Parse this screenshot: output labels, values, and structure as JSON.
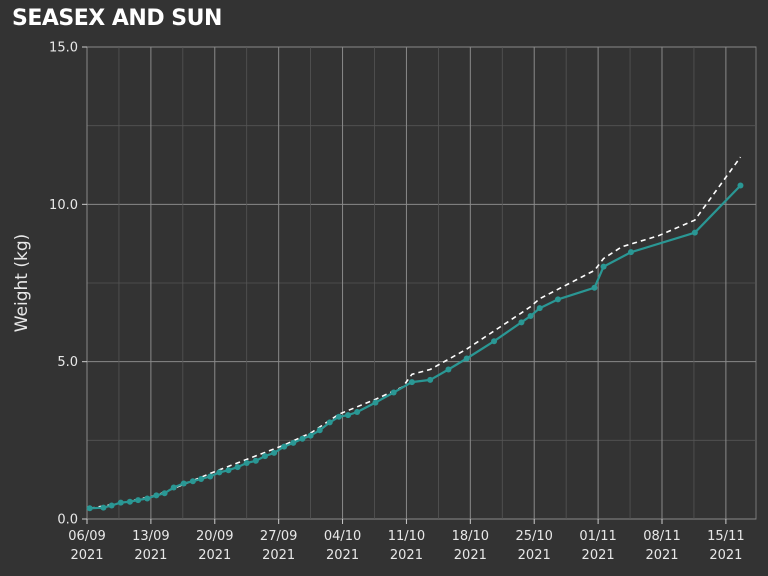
{
  "chart_data": {
    "type": "line",
    "title": "SEASEX AND SUN",
    "xlabel": "",
    "ylabel": "Weight (kg)",
    "ylim": [
      0,
      15
    ],
    "y_ticks": [
      {
        "value": 0,
        "label": "0.0"
      },
      {
        "value": 5,
        "label": "5.0"
      },
      {
        "value": 10,
        "label": "10.0"
      },
      {
        "value": 15,
        "label": "15.0"
      }
    ],
    "x_ticks": [
      {
        "value": 0,
        "line1": "06/09",
        "line2": "2021"
      },
      {
        "value": 7,
        "line1": "13/09",
        "line2": "2021"
      },
      {
        "value": 14,
        "line1": "20/09",
        "line2": "2021"
      },
      {
        "value": 21,
        "line1": "27/09",
        "line2": "2021"
      },
      {
        "value": 28,
        "line1": "04/10",
        "line2": "2021"
      },
      {
        "value": 35,
        "line1": "11/10",
        "line2": "2021"
      },
      {
        "value": 42,
        "line1": "18/10",
        "line2": "2021"
      },
      {
        "value": 49,
        "line1": "25/10",
        "line2": "2021"
      },
      {
        "value": 56,
        "line1": "01/11",
        "line2": "2021"
      },
      {
        "value": 63,
        "line1": "08/11",
        "line2": "2021"
      },
      {
        "value": 70,
        "line1": "15/11",
        "line2": "2021"
      }
    ],
    "xlim": [
      0,
      73.3
    ],
    "grid": true,
    "series": [
      {
        "name": "",
        "style": "solid",
        "color": "#2a9794",
        "markers": true,
        "points": [
          [
            0.3,
            0.34
          ],
          [
            1.8,
            0.36
          ],
          [
            2.7,
            0.43
          ],
          [
            3.7,
            0.52
          ],
          [
            4.7,
            0.55
          ],
          [
            5.6,
            0.6
          ],
          [
            6.6,
            0.65
          ],
          [
            7.6,
            0.75
          ],
          [
            8.5,
            0.82
          ],
          [
            9.5,
            1.0
          ],
          [
            10.6,
            1.13
          ],
          [
            11.6,
            1.2
          ],
          [
            12.5,
            1.27
          ],
          [
            13.5,
            1.35
          ],
          [
            14.5,
            1.48
          ],
          [
            15.5,
            1.55
          ],
          [
            16.5,
            1.65
          ],
          [
            17.5,
            1.78
          ],
          [
            18.5,
            1.85
          ],
          [
            19.5,
            2.0
          ],
          [
            20.5,
            2.1
          ],
          [
            21.6,
            2.3
          ],
          [
            22.6,
            2.42
          ],
          [
            23.6,
            2.55
          ],
          [
            24.5,
            2.65
          ],
          [
            25.5,
            2.82
          ],
          [
            26.6,
            3.07
          ],
          [
            27.6,
            3.25
          ],
          [
            28.6,
            3.3
          ],
          [
            29.6,
            3.4
          ],
          [
            31.6,
            3.7
          ],
          [
            33.6,
            4.02
          ],
          [
            35.6,
            4.35
          ],
          [
            37.6,
            4.42
          ],
          [
            39.6,
            4.75
          ],
          [
            41.6,
            5.1
          ],
          [
            44.6,
            5.65
          ],
          [
            47.6,
            6.25
          ],
          [
            48.6,
            6.45
          ],
          [
            49.6,
            6.7
          ],
          [
            51.6,
            6.98
          ],
          [
            55.6,
            7.35
          ],
          [
            56.6,
            8.02
          ],
          [
            59.6,
            8.48
          ],
          [
            66.6,
            9.1
          ],
          [
            71.6,
            10.6
          ]
        ]
      },
      {
        "name": "",
        "style": "dashed",
        "color": "#ffffff",
        "markers": false,
        "points": [
          [
            0.3,
            0.34
          ],
          [
            3.6,
            0.5
          ],
          [
            7.6,
            0.75
          ],
          [
            14.4,
            1.55
          ],
          [
            21.6,
            2.35
          ],
          [
            24.6,
            2.75
          ],
          [
            27.6,
            3.33
          ],
          [
            31.6,
            3.8
          ],
          [
            34.6,
            4.2
          ],
          [
            35.6,
            4.6
          ],
          [
            37.6,
            4.75
          ],
          [
            41.6,
            5.4
          ],
          [
            47.6,
            6.55
          ],
          [
            48.6,
            6.75
          ],
          [
            49.6,
            7.0
          ],
          [
            51.6,
            7.3
          ],
          [
            55.6,
            7.9
          ],
          [
            56.6,
            8.28
          ],
          [
            58.6,
            8.65
          ],
          [
            62.6,
            9.0
          ],
          [
            66.6,
            9.5
          ],
          [
            71.6,
            11.5
          ]
        ]
      }
    ]
  }
}
